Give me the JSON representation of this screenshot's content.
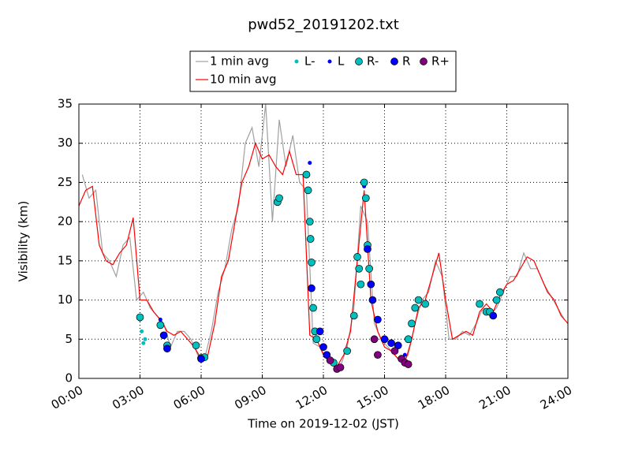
{
  "chart_data": {
    "type": "line",
    "title": "pwd52_20191202.txt",
    "x_label": "Time on 2019-12-02 (JST)",
    "y_label": "Visibility (km)",
    "xlim": [
      "00:00",
      "24:00"
    ],
    "xticks": [
      "00:00",
      "03:00",
      "06:00",
      "09:00",
      "12:00",
      "15:00",
      "18:00",
      "21:00",
      "24:00"
    ],
    "ylim": [
      0,
      35
    ],
    "yticks": [
      0,
      5,
      10,
      15,
      20,
      25,
      30,
      35
    ],
    "grid": true,
    "legend": "top",
    "series": [
      {
        "name": "1 min avg",
        "style": "line",
        "color": "#a0a0a0",
        "x": [
          "00:10",
          "00:30",
          "00:50",
          "01:10",
          "01:30",
          "01:50",
          "02:10",
          "02:30",
          "02:50",
          "03:10",
          "03:30",
          "03:50",
          "04:10",
          "04:30",
          "04:50",
          "05:10",
          "05:30",
          "05:50",
          "06:10",
          "06:30",
          "06:50",
          "07:10",
          "07:30",
          "07:50",
          "08:10",
          "08:30",
          "08:50",
          "09:10",
          "09:30",
          "09:50",
          "10:10",
          "10:30",
          "10:50",
          "11:10",
          "11:30",
          "11:50",
          "12:10",
          "12:30",
          "12:50",
          "13:10",
          "13:30",
          "13:50",
          "14:10",
          "14:30",
          "14:50",
          "15:10",
          "15:30",
          "15:50",
          "16:10",
          "16:30",
          "16:50",
          "17:10",
          "17:30",
          "17:50",
          "18:10",
          "18:30",
          "18:50",
          "19:10",
          "19:30",
          "19:50",
          "20:10",
          "20:30",
          "20:50",
          "21:10",
          "21:30",
          "21:50",
          "22:10",
          "22:30",
          "22:50",
          "23:10",
          "23:30",
          "23:50"
        ],
        "values": [
          26,
          23,
          24,
          16,
          15,
          13,
          17,
          18,
          10,
          11,
          9,
          8,
          7,
          4,
          6,
          6,
          5,
          3,
          2.5,
          6,
          11,
          14,
          19,
          22,
          30,
          32,
          27,
          35,
          20,
          33,
          27,
          31,
          25,
          24,
          4.5,
          4,
          2.5,
          2,
          1.5,
          4,
          9,
          22,
          20,
          7,
          5,
          4,
          3,
          2,
          3,
          7,
          10,
          11,
          15,
          13,
          5,
          5,
          6,
          5.5,
          7,
          9,
          8,
          9,
          11,
          13,
          13,
          16,
          14,
          14,
          12,
          10.5,
          9,
          7.5
        ]
      },
      {
        "name": "10 min avg",
        "style": "line",
        "color": "#ff0000",
        "x": [
          "00:00",
          "00:20",
          "00:40",
          "01:00",
          "01:20",
          "01:40",
          "02:00",
          "02:20",
          "02:40",
          "03:00",
          "03:20",
          "03:40",
          "04:00",
          "04:20",
          "04:40",
          "05:00",
          "05:20",
          "05:40",
          "06:00",
          "06:20",
          "06:40",
          "07:00",
          "07:20",
          "07:40",
          "08:00",
          "08:20",
          "08:40",
          "09:00",
          "09:20",
          "09:40",
          "10:00",
          "10:20",
          "10:40",
          "11:00",
          "11:20",
          "11:40",
          "12:00",
          "12:20",
          "12:40",
          "13:00",
          "13:20",
          "13:40",
          "14:00",
          "14:20",
          "14:40",
          "15:00",
          "15:20",
          "15:40",
          "16:00",
          "16:20",
          "16:40",
          "17:00",
          "17:20",
          "17:40",
          "18:00",
          "18:20",
          "18:40",
          "19:00",
          "19:20",
          "19:40",
          "20:00",
          "20:20",
          "20:40",
          "21:00",
          "21:20",
          "21:40",
          "22:00",
          "22:20",
          "22:40",
          "23:00",
          "23:20",
          "23:40",
          "24:00"
        ],
        "values": [
          22,
          24,
          24.5,
          17,
          15,
          14.5,
          16,
          17,
          20.5,
          10,
          10,
          8.5,
          7.5,
          6,
          5.5,
          6,
          5,
          4,
          2.5,
          3,
          7,
          13,
          15,
          20,
          25,
          27,
          30,
          28,
          28.5,
          27,
          26,
          29,
          26,
          26,
          5.5,
          5,
          3,
          2,
          1.5,
          3,
          6,
          15,
          24,
          10,
          6,
          4,
          3.5,
          2.5,
          2,
          5,
          9,
          10,
          13,
          16,
          10,
          5,
          5.5,
          6,
          5.5,
          8.5,
          9.5,
          8.5,
          10.5,
          12,
          12.5,
          14,
          15.5,
          15,
          13,
          11,
          10,
          8,
          7
        ]
      },
      {
        "name": "L-",
        "style": "marker",
        "color": "#00bfbf",
        "size": 2.5,
        "x": [
          "03:00",
          "03:05",
          "03:10",
          "03:15"
        ],
        "values": [
          7.5,
          6,
          4.5,
          5
        ]
      },
      {
        "name": "L",
        "style": "marker",
        "color": "#0000ff",
        "size": 2.5,
        "x": [
          "04:00",
          "11:20",
          "14:00",
          "15:00",
          "16:00"
        ],
        "values": [
          7.5,
          27.5,
          24.5,
          5,
          3
        ]
      },
      {
        "name": "R-",
        "style": "marker",
        "color": "#00bfbf",
        "size": 4.5,
        "edgecolor": "#000000",
        "x": [
          "03:00",
          "04:00",
          "04:20",
          "05:45",
          "06:00",
          "06:10",
          "09:45",
          "09:50",
          "11:10",
          "11:15",
          "11:20",
          "11:22",
          "11:25",
          "11:30",
          "11:35",
          "11:40",
          "12:30",
          "13:10",
          "13:30",
          "13:40",
          "13:45",
          "13:50",
          "14:00",
          "14:05",
          "14:10",
          "14:15",
          "16:10",
          "16:20",
          "16:30",
          "16:40",
          "17:00",
          "19:40",
          "20:00",
          "20:10",
          "20:30",
          "20:40"
        ],
        "values": [
          7.8,
          6.8,
          4.2,
          4.2,
          2.6,
          2.7,
          22.5,
          23,
          26,
          24,
          20,
          17.8,
          14.8,
          9,
          6,
          5,
          2,
          3.5,
          8,
          15.5,
          14,
          12,
          25,
          23,
          17,
          14,
          5,
          7,
          9,
          10,
          9.5,
          9.5,
          8.5,
          8.5,
          10,
          11
        ]
      },
      {
        "name": "R",
        "style": "marker",
        "color": "#0000ff",
        "size": 4.5,
        "edgecolor": "#000000",
        "x": [
          "04:10",
          "04:20",
          "06:00",
          "11:25",
          "11:50",
          "12:00",
          "12:10",
          "14:10",
          "14:20",
          "14:25",
          "14:40",
          "15:00",
          "15:20",
          "15:40",
          "20:20"
        ],
        "values": [
          5.5,
          3.8,
          2.5,
          11.5,
          6,
          4,
          3,
          16.5,
          12,
          10,
          7.5,
          5,
          4.5,
          4.2,
          8
        ]
      },
      {
        "name": "R+",
        "style": "marker",
        "color": "#800080",
        "size": 4.5,
        "edgecolor": "#000000",
        "x": [
          "12:20",
          "12:40",
          "12:50",
          "14:30",
          "14:40",
          "15:30",
          "15:50",
          "16:00",
          "16:10"
        ],
        "values": [
          2.3,
          1.2,
          1.4,
          5,
          3,
          3.5,
          2.5,
          2,
          1.8
        ]
      }
    ]
  }
}
